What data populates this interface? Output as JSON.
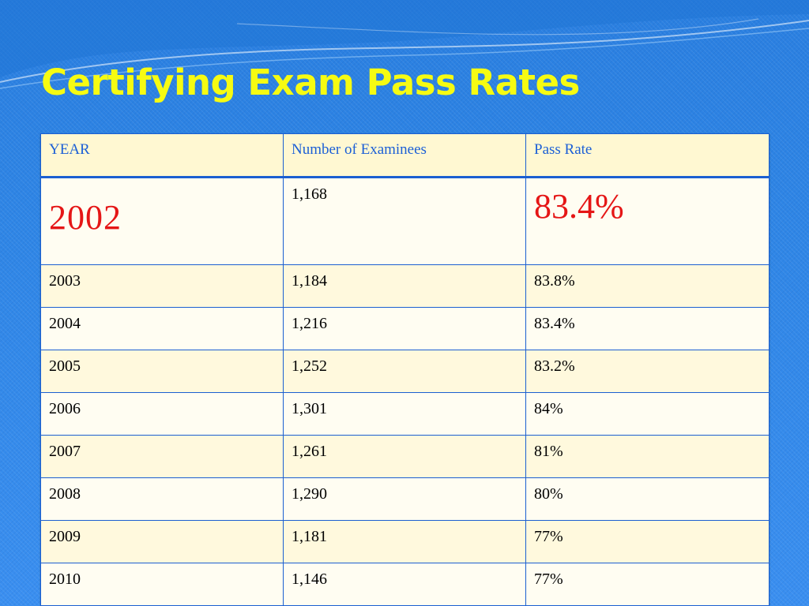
{
  "slide": {
    "title": "Certifying Exam Pass Rates"
  },
  "table": {
    "headers": [
      "YEAR",
      "Number of Examinees",
      "Pass Rate"
    ],
    "rows": [
      {
        "year": "2002",
        "examinees": "1,168",
        "pass_rate": "83.4%"
      },
      {
        "year": "2003",
        "examinees": "1,184",
        "pass_rate": "83.8%"
      },
      {
        "year": "2004",
        "examinees": "1,216",
        "pass_rate": "83.4%"
      },
      {
        "year": "2005",
        "examinees": "1,252",
        "pass_rate": "83.2%"
      },
      {
        "year": "2006",
        "examinees": "1,301",
        "pass_rate": "84%"
      },
      {
        "year": "2007",
        "examinees": "1,261",
        "pass_rate": "81%"
      },
      {
        "year": "2008",
        "examinees": "1,290",
        "pass_rate": "80%"
      },
      {
        "year": "2009",
        "examinees": "1,181",
        "pass_rate": "77%"
      },
      {
        "year": "2010",
        "examinees": "1,146",
        "pass_rate": "77%"
      }
    ]
  },
  "colors": {
    "background": "#2f86e6",
    "title": "#f6fb12",
    "header_text": "#1c5fd6",
    "highlight": "#e51616",
    "table_border": "#1b5fd1"
  }
}
